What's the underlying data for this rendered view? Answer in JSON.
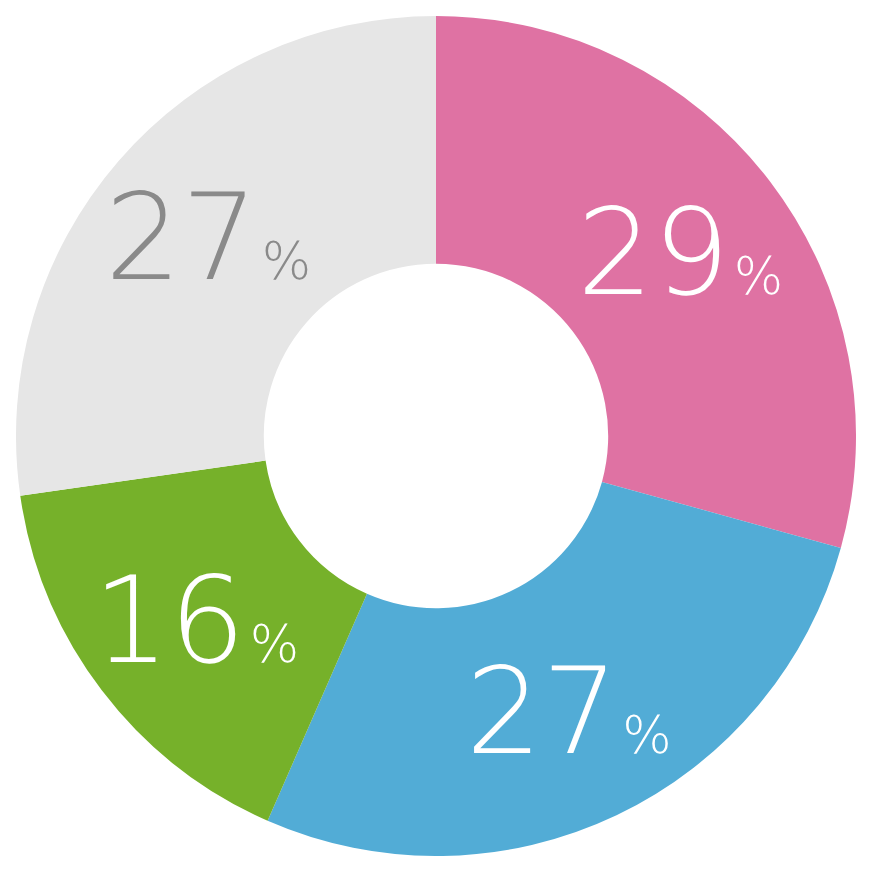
{
  "chart_data": {
    "type": "donut",
    "categories": [
      null,
      null,
      null,
      null
    ],
    "values": [
      29,
      27,
      16,
      27
    ],
    "colors": [
      "#df72a3",
      "#52acd6",
      "#76b12a",
      "#e6e6e6"
    ],
    "value_labels": [
      "29%",
      "27%",
      "16%",
      "27%"
    ],
    "legend": false
  }
}
